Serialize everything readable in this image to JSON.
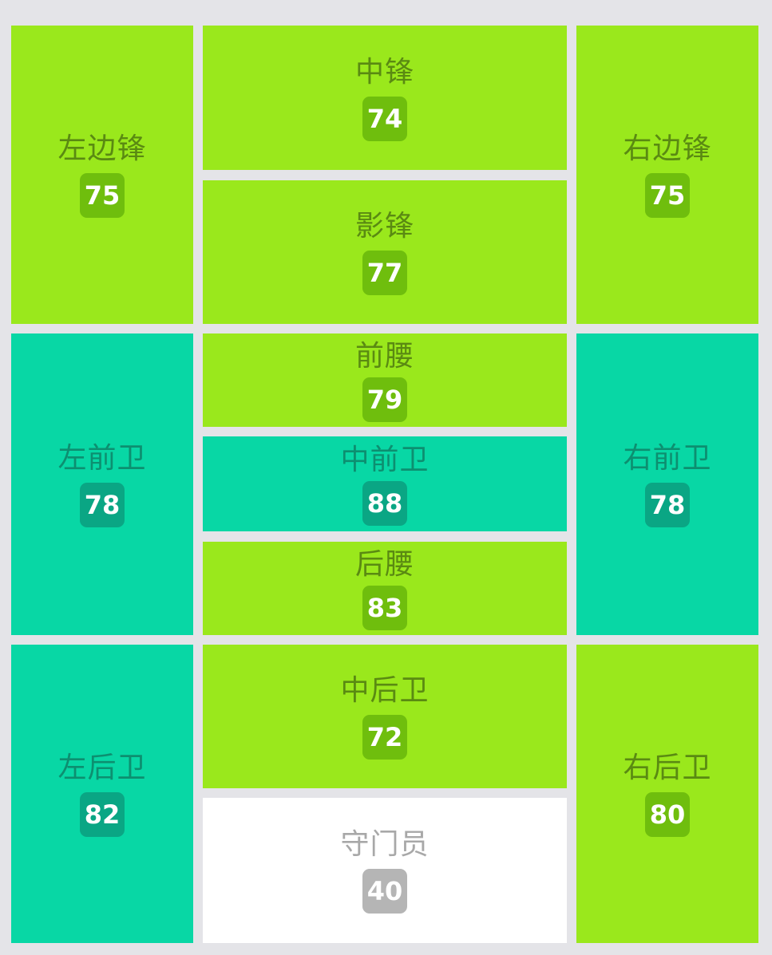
{
  "positions": {
    "lw": {
      "label": "左边锋",
      "rating": "75",
      "color": "lime"
    },
    "st": {
      "label": "中锋",
      "rating": "74",
      "color": "lime"
    },
    "rw": {
      "label": "右边锋",
      "rating": "75",
      "color": "lime"
    },
    "cf": {
      "label": "影锋",
      "rating": "77",
      "color": "lime"
    },
    "lm": {
      "label": "左前卫",
      "rating": "78",
      "color": "teal"
    },
    "cam": {
      "label": "前腰",
      "rating": "79",
      "color": "lime"
    },
    "rm": {
      "label": "右前卫",
      "rating": "78",
      "color": "teal"
    },
    "cm": {
      "label": "中前卫",
      "rating": "88",
      "color": "teal"
    },
    "cdm": {
      "label": "后腰",
      "rating": "83",
      "color": "lime"
    },
    "lb": {
      "label": "左后卫",
      "rating": "82",
      "color": "teal"
    },
    "cb": {
      "label": "中后卫",
      "rating": "72",
      "color": "lime"
    },
    "rb": {
      "label": "右后卫",
      "rating": "80",
      "color": "lime"
    },
    "gk": {
      "label": "守门员",
      "rating": "40",
      "color": "white"
    }
  },
  "colors": {
    "lime": "#9ae81c",
    "teal": "#08d7a5",
    "white": "#ffffff",
    "background": "#e4e4e8"
  }
}
